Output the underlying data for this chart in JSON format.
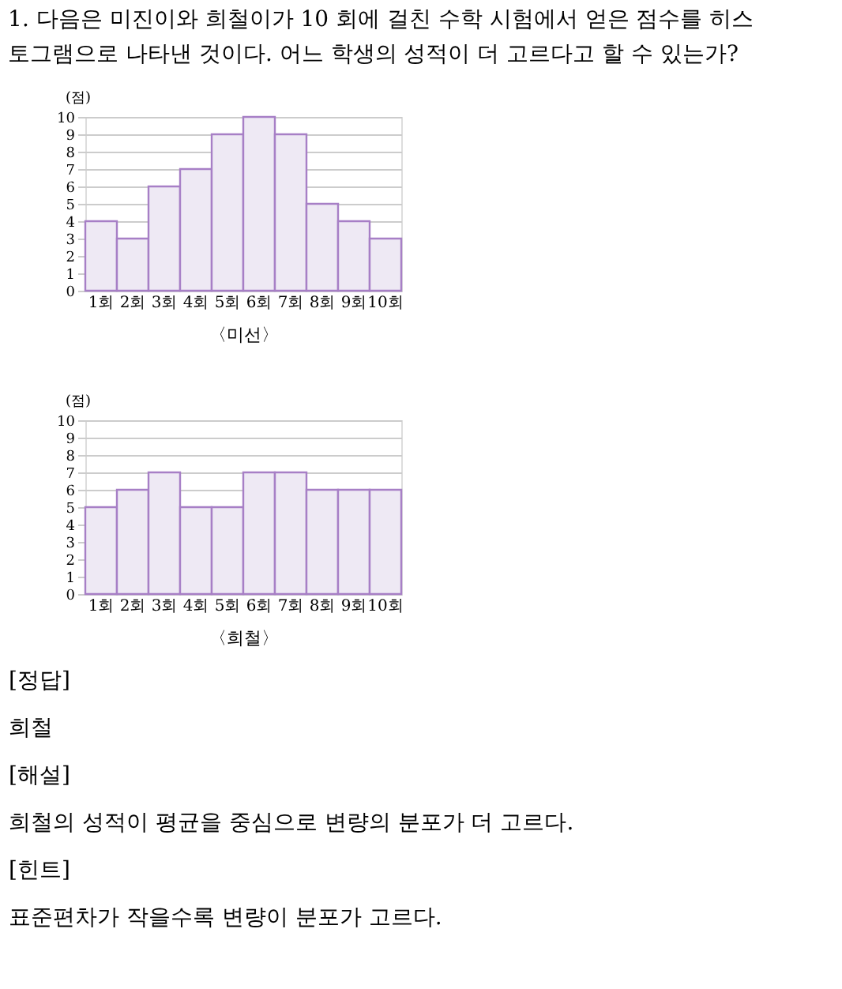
{
  "chart_data": [
    {
      "type": "bar",
      "title": [
        "1. 다음은 미진이와 희철이가 10 회에 걸친 수학 시험에서 얻은 점수를 히스",
        "토그램으로 나타낸 것이다. 어느 학생의 성적이 더 고르다고 할 수 있는가?"
      ],
      "ylabel": "(점)",
      "xlabel": "〈미선〉",
      "categories": [
        "1회",
        "2회",
        "3회",
        "4회",
        "5회",
        "6회",
        "7회",
        "8회",
        "9회",
        "10회"
      ],
      "values": [
        4,
        3,
        6,
        7,
        9,
        10,
        9,
        5,
        4,
        3
      ],
      "color": "#eee9f4",
      "ylim": [
        0,
        10
      ],
      "yticks": [
        0,
        1,
        2,
        3,
        4,
        5,
        6,
        7,
        8,
        9,
        10
      ],
      "grid": "y"
    },
    {
      "type": "bar",
      "ylabel": "(점)",
      "xlabel": "〈희철〉",
      "categories": [
        "1회",
        "2회",
        "3회",
        "4회",
        "5회",
        "6회",
        "7회",
        "8회",
        "9회",
        "10회"
      ],
      "values": [
        5,
        6,
        7,
        5,
        5,
        7,
        7,
        6,
        6,
        6
      ],
      "color": "#eee9f4",
      "ylim": [
        0,
        10
      ],
      "yticks": [
        0,
        1,
        2,
        3,
        4,
        5,
        6,
        7,
        8,
        9,
        10
      ],
      "grid": "y",
      "annotations": [
        "[정답]",
        "    희철",
        "[해설]",
        "    희철의 성적이 평균을 중심으로 변량의 분포가 더 고르다.",
        "[힌트]",
        "    표준편차가 작을수록 변량이 분포가 고르다."
      ]
    }
  ]
}
